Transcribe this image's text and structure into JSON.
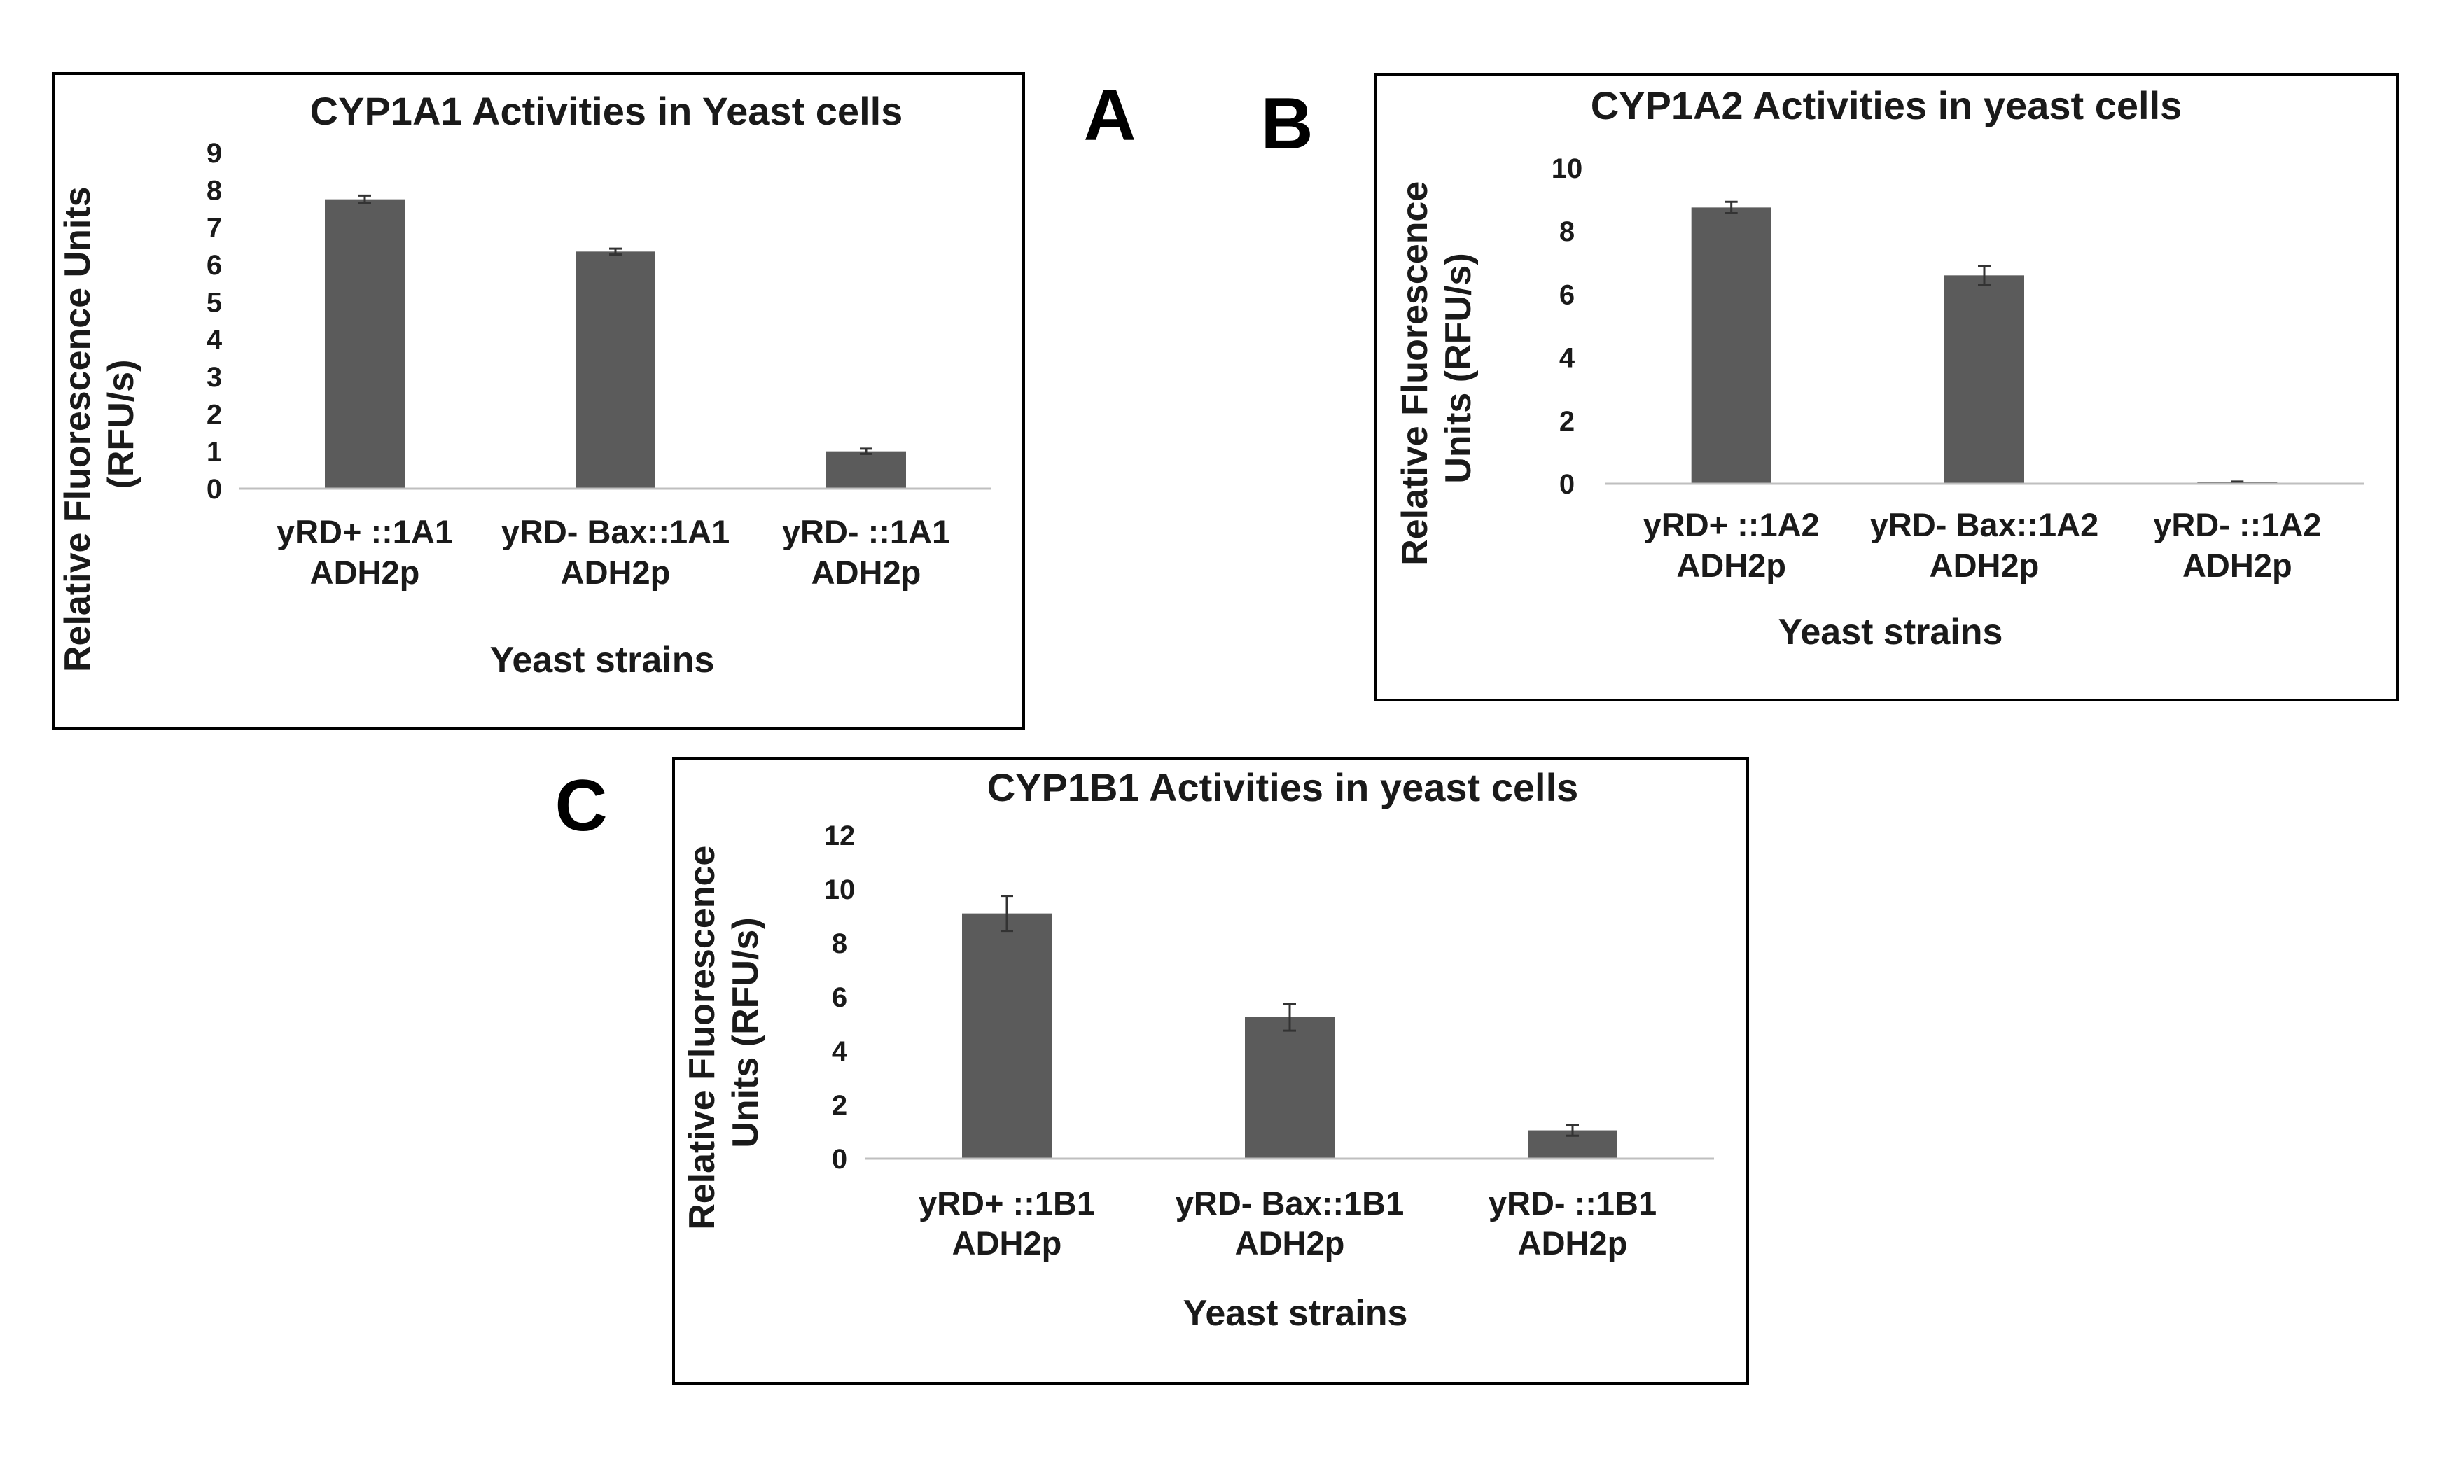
{
  "panel_labels": {
    "a": "A",
    "b": "B",
    "c": "C"
  },
  "colors": {
    "bar": "#5b5b5b",
    "axis": "#bfbfbf",
    "frame": "#000000",
    "text": "#1a1a1a"
  },
  "chart_data": [
    {
      "type": "bar",
      "title": "CYP1A1 Activities in Yeast cells",
      "xlabel": "Yeast strains",
      "ylabel_lines": [
        "Relative Fluorescence Units",
        "(RFU/s)"
      ],
      "categories": [
        [
          "yRD+ ::1A1",
          "ADH2p"
        ],
        [
          "yRD- Bax::1A1",
          "ADH2p"
        ],
        [
          "yRD- ::1A1",
          "ADH2p"
        ]
      ],
      "values": [
        7.75,
        6.35,
        1.0
      ],
      "errors": [
        0.1,
        0.08,
        0.07
      ],
      "yticks": [
        0,
        1,
        2,
        3,
        4,
        5,
        6,
        7,
        8,
        9
      ],
      "ylim": [
        0,
        9
      ]
    },
    {
      "type": "bar",
      "title": "CYP1A2 Activities in yeast cells",
      "xlabel": "Yeast strains",
      "ylabel_lines": [
        "Relative Fluorescence",
        "Units (RFU/s)"
      ],
      "categories": [
        [
          "yRD+ ::1A2",
          "ADH2p"
        ],
        [
          "yRD- Bax::1A2",
          "ADH2p"
        ],
        [
          "yRD- ::1A2",
          "ADH2p"
        ]
      ],
      "values": [
        8.75,
        6.6,
        0.05
      ],
      "errors": [
        0.18,
        0.3,
        0.02
      ],
      "yticks": [
        0,
        2,
        4,
        6,
        8,
        10
      ],
      "ylim": [
        0,
        10
      ]
    },
    {
      "type": "bar",
      "title": "CYP1B1 Activities in yeast cells",
      "xlabel": "Yeast strains",
      "ylabel_lines": [
        "Relative Fluorescence",
        "Units (RFU/s)"
      ],
      "categories": [
        [
          "yRD+ ::1B1",
          "ADH2p"
        ],
        [
          "yRD- Bax::1B1",
          "ADH2p"
        ],
        [
          "yRD- ::1B1",
          "ADH2p"
        ]
      ],
      "values": [
        9.1,
        5.25,
        1.05
      ],
      "errors": [
        0.65,
        0.5,
        0.2
      ],
      "yticks": [
        0,
        2,
        4,
        6,
        8,
        10,
        12
      ],
      "ylim": [
        0,
        12
      ]
    }
  ]
}
